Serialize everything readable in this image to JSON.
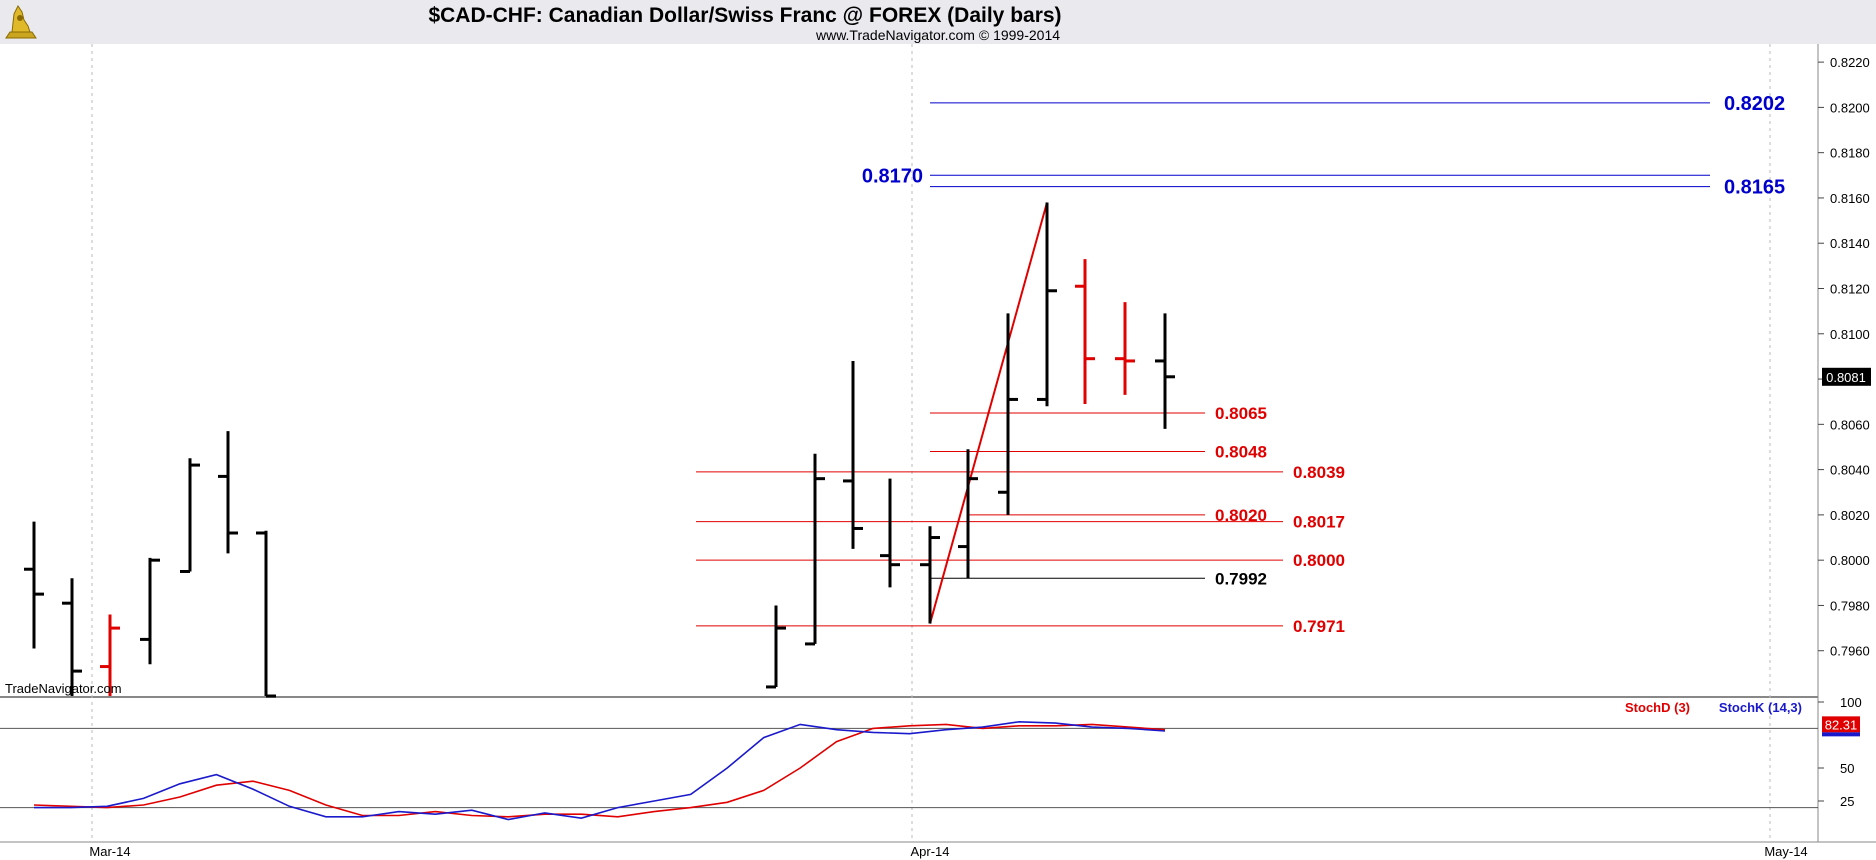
{
  "header": {
    "title": "$CAD-CHF:  Canadian Dollar/Swiss Franc @ FOREX  (Daily bars)",
    "subtitle": "www.TradeNavigator.com © 1999-2014",
    "watermark": "TradeNavigator.com",
    "logo": "trade-navigator-logo"
  },
  "chart_data": [
    {
      "type": "ohlc",
      "ylim": [
        0.794,
        0.8228
      ],
      "yticks": [
        "0.7960",
        "0.7980",
        "0.8000",
        "0.8020",
        "0.8040",
        "0.8060",
        "0.8080",
        "0.8100",
        "0.8120",
        "0.8140",
        "0.8160",
        "0.8180",
        "0.8200",
        "0.8220"
      ],
      "xticks": [
        "Mar-14",
        "Apr-14",
        "May-14"
      ],
      "last_price_label": "0.8081",
      "grid": "vertical dashed at month starts",
      "bars": [
        {
          "o": 0.7996,
          "h": 0.8017,
          "l": 0.7961,
          "c": 0.7985,
          "color": "black"
        },
        {
          "o": 0.7981,
          "h": 0.7992,
          "l": 0.794,
          "c": 0.7951,
          "color": "black"
        },
        {
          "o": 0.7953,
          "h": 0.7976,
          "l": 0.794,
          "c": 0.797,
          "color": "red"
        },
        {
          "o": 0.7965,
          "h": 0.8001,
          "l": 0.7954,
          "c": 0.8,
          "color": "black"
        },
        {
          "o": 0.7995,
          "h": 0.8045,
          "l": 0.7995,
          "c": 0.8042,
          "color": "black"
        },
        {
          "o": 0.8037,
          "h": 0.8057,
          "l": 0.8003,
          "c": 0.8012,
          "color": "black"
        },
        {
          "o": 0.8012,
          "h": 0.8013,
          "l": 0.794,
          "c": 0.794,
          "color": "black"
        },
        {
          "o": 0.7944,
          "h": 0.798,
          "l": 0.7944,
          "c": 0.797,
          "color": "black"
        },
        {
          "o": 0.7963,
          "h": 0.8047,
          "l": 0.7963,
          "c": 0.8036,
          "color": "black"
        },
        {
          "o": 0.8035,
          "h": 0.8088,
          "l": 0.8005,
          "c": 0.8014,
          "color": "black"
        },
        {
          "o": 0.8002,
          "h": 0.8036,
          "l": 0.7988,
          "c": 0.7998,
          "color": "black"
        },
        {
          "o": 0.7998,
          "h": 0.8015,
          "l": 0.7972,
          "c": 0.801,
          "color": "black"
        },
        {
          "o": 0.8006,
          "h": 0.8049,
          "l": 0.7992,
          "c": 0.8036,
          "color": "black"
        },
        {
          "o": 0.803,
          "h": 0.8109,
          "l": 0.802,
          "c": 0.8071,
          "color": "black"
        },
        {
          "o": 0.8071,
          "h": 0.8158,
          "l": 0.8068,
          "c": 0.8119,
          "color": "black"
        },
        {
          "o": 0.8121,
          "h": 0.8133,
          "l": 0.8069,
          "c": 0.8089,
          "color": "red"
        },
        {
          "o": 0.8089,
          "h": 0.8114,
          "l": 0.8073,
          "c": 0.8088,
          "color": "red"
        },
        {
          "o": 0.8088,
          "h": 0.8109,
          "l": 0.8058,
          "c": 0.8081,
          "color": "black"
        }
      ],
      "levels": [
        {
          "value": 0.8202,
          "label": "0.8202",
          "color": "#0000cc",
          "style": "big"
        },
        {
          "value": 0.817,
          "label": "0.8170",
          "color": "#0000cc",
          "style": "big"
        },
        {
          "value": 0.8165,
          "label": "0.8165",
          "color": "#0000cc",
          "style": "big"
        },
        {
          "value": 0.8065,
          "label": "0.8065",
          "color": "#e00000",
          "style": "normal"
        },
        {
          "value": 0.8048,
          "label": "0.8048",
          "color": "#e00000",
          "style": "normal"
        },
        {
          "value": 0.8039,
          "label": "0.8039",
          "color": "#e00000",
          "style": "normal"
        },
        {
          "value": 0.802,
          "label": "0.8020",
          "color": "#e00000",
          "style": "normal"
        },
        {
          "value": 0.8017,
          "label": "0.8017",
          "color": "#e00000",
          "style": "normal"
        },
        {
          "value": 0.8,
          "label": "0.8000",
          "color": "#e00000",
          "style": "normal"
        },
        {
          "value": 0.7992,
          "label": "0.7992",
          "color": "#000000",
          "style": "normal"
        },
        {
          "value": 0.7971,
          "label": "0.7971",
          "color": "#e00000",
          "style": "normal"
        }
      ],
      "trendline": {
        "from": {
          "bar": 11,
          "value": 0.7972
        },
        "to": {
          "bar": 14,
          "value": 0.8158
        },
        "color": "#e00000"
      }
    },
    {
      "type": "line",
      "name": "stochastic",
      "ylim": [
        0,
        100
      ],
      "yticks": [
        "25",
        "50",
        "100"
      ],
      "reference_lines": [
        20,
        80
      ],
      "last_value_label": "82.31",
      "series": [
        {
          "name": "StochD (3)",
          "color": "#e00000",
          "values": [
            22,
            21,
            20,
            22,
            28,
            37,
            40,
            33,
            22,
            14,
            14,
            17,
            14,
            13,
            15,
            15,
            13,
            17,
            20,
            24,
            33,
            50,
            70,
            80,
            82,
            83,
            80,
            82,
            82,
            83,
            81,
            79
          ]
        },
        {
          "name": "StochK (14,3)",
          "color": "#1a1acc",
          "values": [
            20,
            20,
            21,
            27,
            38,
            45,
            34,
            21,
            13,
            13,
            17,
            15,
            18,
            11,
            16,
            12,
            20,
            25,
            30,
            50,
            73,
            83,
            79,
            77,
            76,
            79,
            81,
            85,
            84,
            81,
            80,
            78
          ]
        }
      ]
    }
  ]
}
